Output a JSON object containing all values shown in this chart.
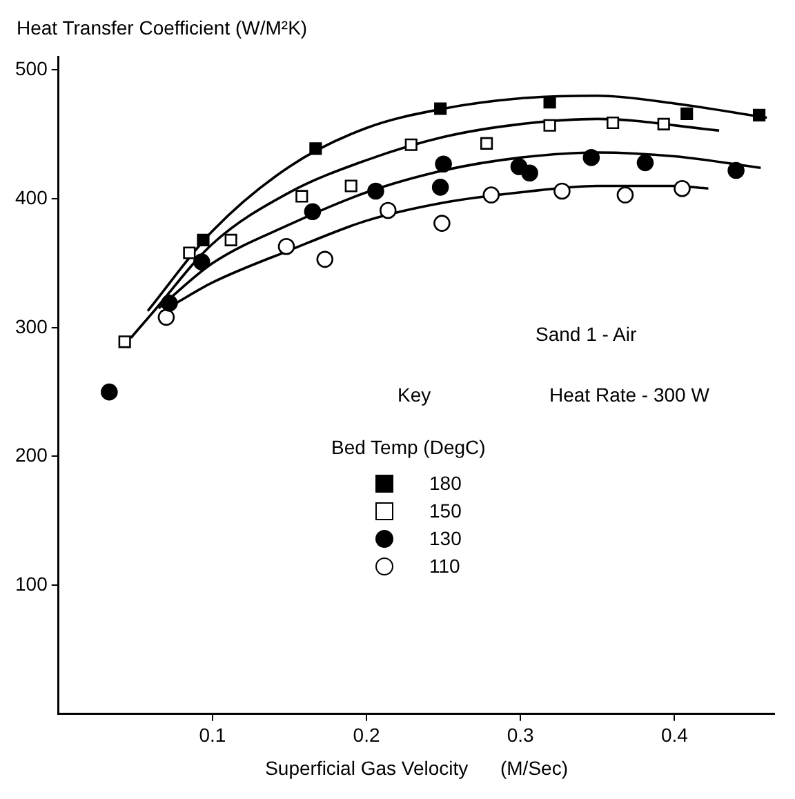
{
  "chart_data": {
    "type": "scatter",
    "ylabel": "Heat Transfer Coefficient     (W/M²K)",
    "xlabel": "Superficial Gas Velocity      (M/Sec)",
    "legend_title": "Bed Temp (DegC)",
    "legend": "center",
    "annotations": [
      "Sand 1 - Air",
      "Key",
      "Heat Rate - 300 W"
    ],
    "xlim": [
      0,
      0.465
    ],
    "xticks": [
      0.1,
      0.2,
      0.3,
      0.4
    ],
    "ylim": [
      0,
      510
    ],
    "yticks": [
      100,
      200,
      300,
      400,
      500
    ],
    "grid": false,
    "series": [
      {
        "name": "180",
        "color": "#000000",
        "marker": "square",
        "x": [
          0.094,
          0.167,
          0.248,
          0.319,
          0.408,
          0.455
        ],
        "values": [
          368,
          439,
          470,
          475,
          466,
          465
        ]
      },
      {
        "name": "150",
        "color": "#ffffff",
        "marker": "square",
        "x": [
          0.043,
          0.085,
          0.112,
          0.158,
          0.19,
          0.229,
          0.278,
          0.319,
          0.36,
          0.393
        ],
        "values": [
          289,
          358,
          368,
          402,
          410,
          442,
          443,
          457,
          459,
          458
        ]
      },
      {
        "name": "130",
        "color": "#000000",
        "marker": "circle",
        "x": [
          0.033,
          0.072,
          0.093,
          0.165,
          0.206,
          0.248,
          0.25,
          0.299,
          0.306,
          0.346,
          0.381,
          0.44
        ],
        "values": [
          250,
          319,
          351,
          390,
          406,
          409,
          427,
          425,
          420,
          432,
          428,
          422
        ]
      },
      {
        "name": "110",
        "color": "#ffffff",
        "marker": "circle",
        "x": [
          0.07,
          0.148,
          0.173,
          0.214,
          0.249,
          0.281,
          0.327,
          0.368,
          0.405
        ],
        "values": [
          308,
          363,
          353,
          391,
          381,
          403,
          406,
          403,
          408
        ]
      },
      {
        "type": "line",
        "color": "#000000",
        "marker": "none",
        "x": [
          0.058,
          0.1,
          0.15,
          0.2,
          0.25,
          0.3,
          0.35,
          0.4,
          0.46
        ],
        "values": [
          313,
          375,
          425,
          455,
          470,
          478,
          480,
          474,
          463
        ]
      },
      {
        "type": "line",
        "color": "#000000",
        "marker": "none",
        "x": [
          0.047,
          0.06,
          0.1,
          0.15,
          0.2,
          0.25,
          0.3,
          0.35,
          0.429
        ],
        "values": [
          292,
          310,
          365,
          405,
          430,
          448,
          458,
          462,
          453
        ]
      },
      {
        "type": "line",
        "color": "#000000",
        "marker": "none",
        "x": [
          0.065,
          0.1,
          0.15,
          0.2,
          0.25,
          0.3,
          0.35,
          0.4,
          0.456
        ],
        "values": [
          315,
          350,
          380,
          405,
          422,
          432,
          436,
          433,
          424
        ]
      },
      {
        "type": "line",
        "color": "#000000",
        "marker": "none",
        "x": [
          0.075,
          0.1,
          0.15,
          0.2,
          0.25,
          0.3,
          0.35,
          0.4,
          0.422
        ],
        "values": [
          318,
          335,
          360,
          383,
          397,
          405,
          410,
          410,
          408
        ]
      }
    ]
  }
}
